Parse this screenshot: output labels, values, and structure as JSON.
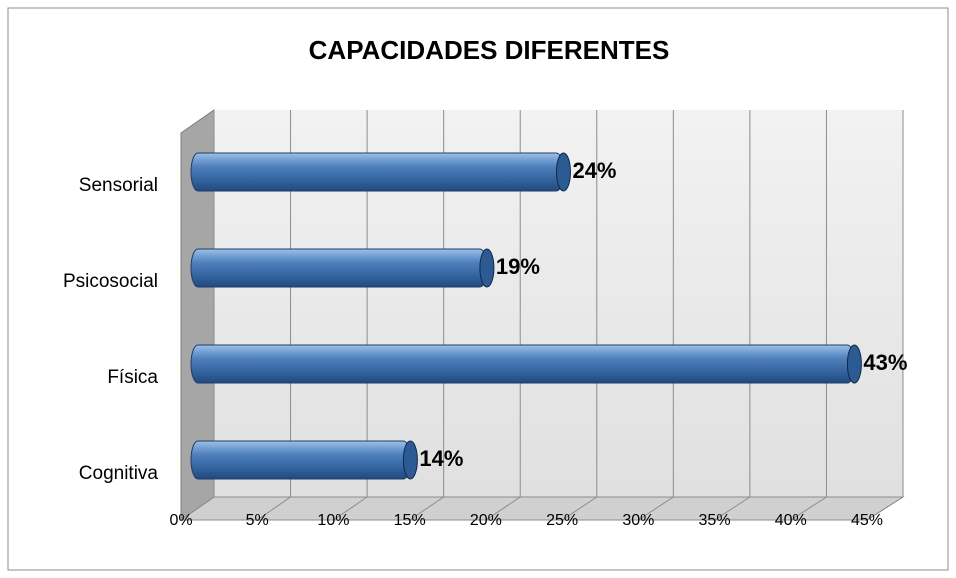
{
  "chart_data": {
    "type": "bar3d_horizontal",
    "title": "CAPACIDADES DIFERENTES",
    "categories": [
      "Sensorial",
      "Psicosocial",
      "Física",
      "Cognitiva"
    ],
    "values": [
      24,
      19,
      43,
      14
    ],
    "value_labels": [
      "24%",
      "19%",
      "43%",
      "14%"
    ],
    "color": "#4f81bd",
    "xlim": [
      0,
      45
    ],
    "xticks": [
      {
        "value": 0,
        "label": "0%"
      },
      {
        "value": 5,
        "label": "5%"
      },
      {
        "value": 10,
        "label": "10%"
      },
      {
        "value": 15,
        "label": "15%"
      },
      {
        "value": 20,
        "label": "20%"
      },
      {
        "value": 25,
        "label": "25%"
      },
      {
        "value": 30,
        "label": "30%"
      },
      {
        "value": 35,
        "label": "35%"
      },
      {
        "value": 40,
        "label": "40%"
      },
      {
        "value": 45,
        "label": "45%"
      }
    ],
    "grid": true
  }
}
